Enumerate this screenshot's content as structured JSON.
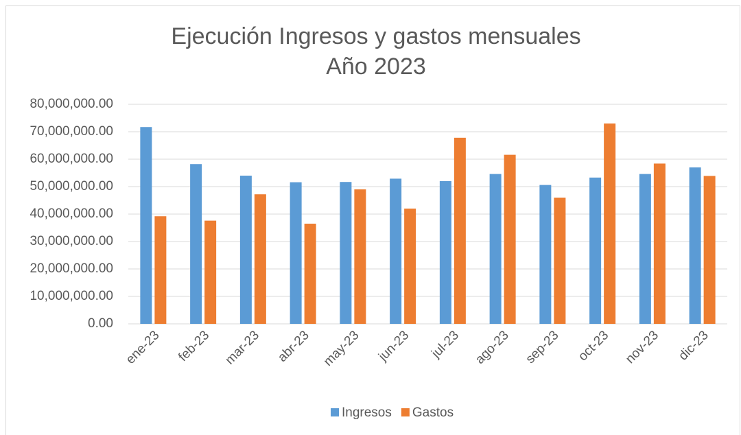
{
  "chart_data": {
    "type": "bar",
    "title": "Ejecución Ingresos y gastos mensuales",
    "subtitle": "Año 2023",
    "categories": [
      "ene-23",
      "feb-23",
      "mar-23",
      "abr-23",
      "may-23",
      "jun-23",
      "jul-23",
      "ago-23",
      "sep-23",
      "oct-23",
      "nov-23",
      "dic-23"
    ],
    "series": [
      {
        "name": "Ingresos",
        "color": "#5b9bd5",
        "values": [
          71700000,
          58200000,
          54000000,
          51600000,
          51700000,
          52900000,
          52000000,
          54600000,
          50600000,
          53300000,
          54600000,
          57000000
        ]
      },
      {
        "name": "Gastos",
        "color": "#ed7d31",
        "values": [
          39200000,
          37600000,
          47200000,
          36500000,
          49000000,
          42000000,
          67800000,
          61600000,
          46000000,
          73000000,
          58400000,
          53900000
        ]
      }
    ],
    "ylim": [
      0,
      80000000
    ],
    "yticks": [
      {
        "value": 0,
        "label": "0.00"
      },
      {
        "value": 10000000,
        "label": "10,000,000.00"
      },
      {
        "value": 20000000,
        "label": "20,000,000.00"
      },
      {
        "value": 30000000,
        "label": "30,000,000.00"
      },
      {
        "value": 40000000,
        "label": "40,000,000.00"
      },
      {
        "value": 50000000,
        "label": "50,000,000.00"
      },
      {
        "value": 60000000,
        "label": "60,000,000.00"
      },
      {
        "value": 70000000,
        "label": "70,000,000.00"
      },
      {
        "value": 80000000,
        "label": "80,000,000.00"
      }
    ],
    "grid": true,
    "legend": "bottom"
  }
}
